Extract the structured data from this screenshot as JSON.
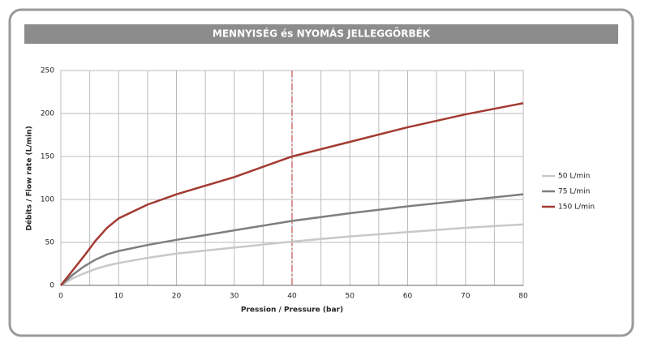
{
  "chart_data": {
    "type": "line",
    "title": "MENNYISÉG és NYOMÁS JELLEGGÖRBÉK",
    "x_label": "Pression / Pressure (bar)",
    "y_label": "Débits / Flow rate (L/min)",
    "x": [
      0,
      2,
      4,
      6,
      8,
      10,
      15,
      20,
      30,
      40,
      50,
      60,
      70,
      80
    ],
    "series": [
      {
        "name": "50 L/min",
        "color": "#c8c8c8",
        "values": [
          0,
          8,
          14,
          19,
          23,
          26,
          32,
          37,
          44,
          51,
          57,
          62,
          67,
          71
        ]
      },
      {
        "name": "75 L/min",
        "color": "#7f7f7f",
        "values": [
          0,
          12,
          22,
          30,
          36,
          40,
          47,
          53,
          64,
          75,
          84,
          92,
          99,
          106
        ]
      },
      {
        "name": "150 L/min",
        "color": "#a33a32",
        "values": [
          0,
          17,
          34,
          52,
          67,
          78,
          94,
          106,
          126,
          150,
          167,
          184,
          199,
          212
        ]
      }
    ],
    "xlim": [
      0,
      80
    ],
    "xticks": [
      0,
      10,
      20,
      30,
      40,
      50,
      60,
      70,
      80
    ],
    "x_minor_grid": [
      5,
      15,
      25,
      35,
      45,
      55,
      65,
      75
    ],
    "ylim": [
      0,
      250
    ],
    "yticks": [
      0,
      50,
      100,
      150,
      200,
      250
    ],
    "grid": true,
    "legend": "right",
    "reference_x": 40,
    "reference_color": "#c0504d"
  }
}
